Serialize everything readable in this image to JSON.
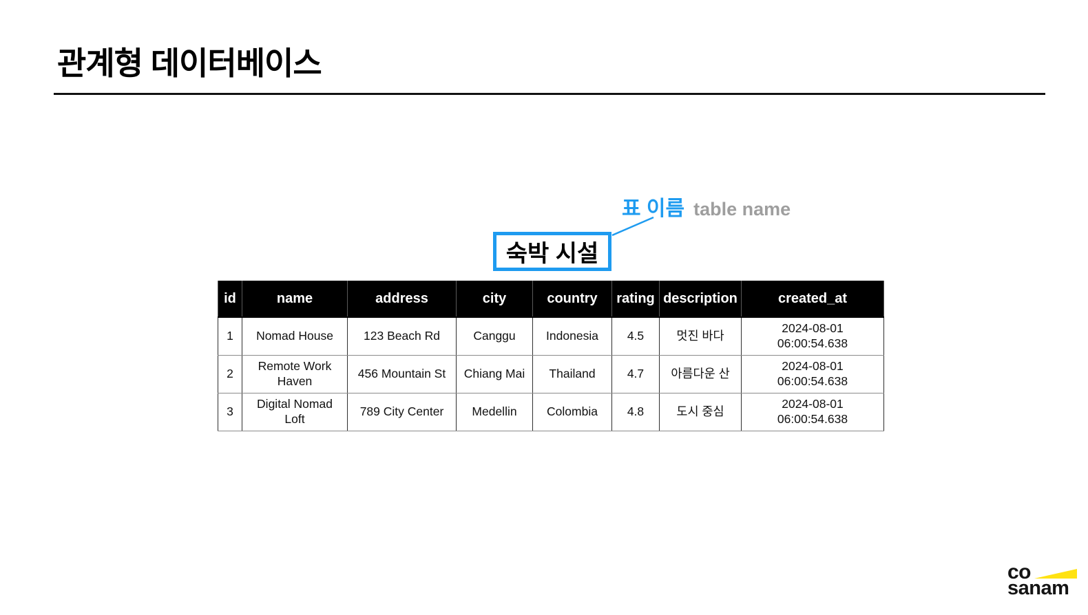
{
  "page": {
    "title": "관계형 데이터베이스"
  },
  "annotation": {
    "label_ko": "표 이름",
    "label_en": "table name",
    "accent_color": "#1e9bf0",
    "muted_color": "#9e9e9e"
  },
  "table_name_box": {
    "text": "숙박 시설"
  },
  "table": {
    "columns": [
      "id",
      "name",
      "address",
      "city",
      "country",
      "rating",
      "description",
      "created_at"
    ],
    "rows": [
      [
        "1",
        "Nomad House",
        "123 Beach Rd",
        "Canggu",
        "Indonesia",
        "4.5",
        "멋진 바다",
        "2024-08-01 06:00:54.638"
      ],
      [
        "2",
        "Remote Work Haven",
        "456 Mountain St",
        "Chiang Mai",
        "Thailand",
        "4.7",
        "아름다운 산",
        "2024-08-01 06:00:54.638"
      ],
      [
        "3",
        "Digital Nomad Loft",
        "789 City Center",
        "Medellin",
        "Colombia",
        "4.8",
        "도시 중심",
        "2024-08-01 06:00:54.638"
      ]
    ],
    "header_bg": "#000000",
    "header_fg": "#ffffff"
  },
  "logo": {
    "line1": "co",
    "line2": "sanam",
    "accent_color": "#ffe212"
  }
}
